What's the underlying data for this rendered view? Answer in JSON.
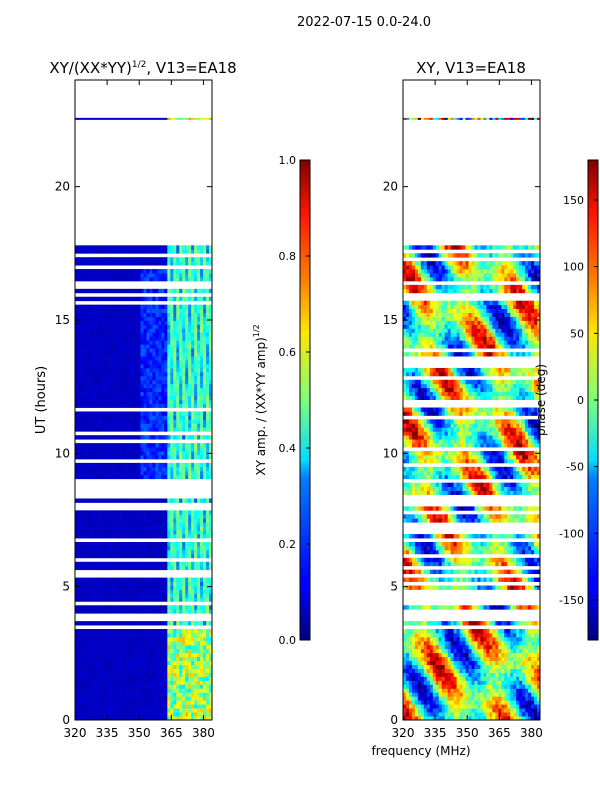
{
  "suptitle": "2022-07-15 0.0-24.0",
  "chart_data": [
    {
      "type": "heatmap",
      "title_main": "XY/(XX*YY)",
      "title_exp": "1/2",
      "title_tail": ", V13=EA18",
      "ylabel": "UT (hours)",
      "xlabel": "",
      "xlim": [
        320,
        384
      ],
      "ylim": [
        0,
        24
      ],
      "xticks": [
        "320",
        "335",
        "350",
        "365",
        "380"
      ],
      "xtick_values": [
        320,
        335,
        350,
        365,
        380
      ],
      "yticks": [
        "0",
        "5",
        "10",
        "15",
        "20"
      ],
      "ytick_values": [
        0,
        5,
        10,
        15,
        20
      ],
      "data_rows_hours": [
        0,
        17.8
      ],
      "isolated_row_hours": 22.5,
      "background_value": 0.05,
      "bright_channel_mhz": [
        362,
        384
      ],
      "colorbar": {
        "label_main": "XY amp. / (XX*YY amp)",
        "label_exp": "1/2",
        "range": [
          0.0,
          1.0
        ],
        "ticks": [
          "0.0",
          "0.2",
          "0.4",
          "0.6",
          "0.8",
          "1.0"
        ],
        "tick_values": [
          0.0,
          0.2,
          0.4,
          0.6,
          0.8,
          1.0
        ],
        "colormap": "jet"
      }
    },
    {
      "type": "heatmap",
      "title": "XY, V13=EA18",
      "xlabel": "frequency (MHz)",
      "xlim": [
        320,
        384
      ],
      "ylim": [
        0,
        24
      ],
      "xticks": [
        "320",
        "335",
        "350",
        "365",
        "380"
      ],
      "xtick_values": [
        320,
        335,
        350,
        365,
        380
      ],
      "yticks": [
        "0",
        "5",
        "10",
        "15",
        "20"
      ],
      "ytick_values": [
        0,
        5,
        10,
        15,
        20
      ],
      "data_rows_hours": [
        0,
        17.8
      ],
      "isolated_row_hours": 22.5,
      "colorbar": {
        "label": "phase (deg)",
        "range": [
          -180,
          180
        ],
        "ticks": [
          "-150",
          "-100",
          "-50",
          "0",
          "50",
          "100",
          "150"
        ],
        "tick_values": [
          -150,
          -100,
          -50,
          0,
          50,
          100,
          150
        ],
        "colormap": "jet"
      }
    }
  ]
}
